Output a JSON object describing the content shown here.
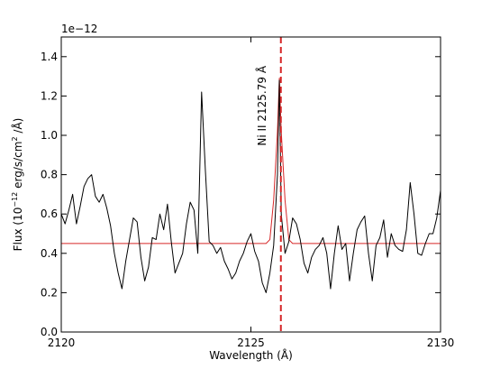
{
  "chart_data": {
    "type": "line",
    "title": "",
    "xlabel": "Wavelength (Å)",
    "ylabel_main": "Flux (10",
    "ylabel_exp": "−12",
    "ylabel_mid": "erg/s/cm",
    "ylabel_sq": "2",
    "ylabel_end": "/Å)",
    "offset_text": "1e−12",
    "xlim": [
      2120,
      2130
    ],
    "ylim": [
      0.0,
      1.5
    ],
    "x_ticks": [
      2120,
      2125,
      2130
    ],
    "x_tick_labels": [
      "2120",
      "2125",
      "2130"
    ],
    "y_ticks": [
      0.0,
      0.2,
      0.4,
      0.6,
      0.8,
      1.0,
      1.2,
      1.4
    ],
    "y_tick_labels": [
      "0.0",
      "0.2",
      "0.4",
      "0.6",
      "0.8",
      "1.0",
      "1.2",
      "1.4"
    ],
    "grid": false,
    "legend": "none",
    "series": [
      {
        "role": "observed",
        "color": "#000000",
        "x": [
          2120.0,
          2120.1,
          2120.2,
          2120.3,
          2120.4,
          2120.5,
          2120.6,
          2120.7,
          2120.8,
          2120.9,
          2121.0,
          2121.1,
          2121.2,
          2121.3,
          2121.4,
          2121.5,
          2121.6,
          2121.7,
          2121.8,
          2121.9,
          2122.0,
          2122.1,
          2122.2,
          2122.3,
          2122.4,
          2122.5,
          2122.6,
          2122.7,
          2122.8,
          2122.9,
          2123.0,
          2123.1,
          2123.2,
          2123.3,
          2123.4,
          2123.5,
          2123.6,
          2123.7,
          2123.8,
          2123.9,
          2124.0,
          2124.1,
          2124.2,
          2124.3,
          2124.4,
          2124.5,
          2124.6,
          2124.7,
          2124.8,
          2124.9,
          2125.0,
          2125.1,
          2125.2,
          2125.3,
          2125.4,
          2125.5,
          2125.6,
          2125.7,
          2125.75,
          2125.8,
          2125.9,
          2126.0,
          2126.1,
          2126.2,
          2126.3,
          2126.4,
          2126.5,
          2126.6,
          2126.7,
          2126.8,
          2126.9,
          2127.0,
          2127.1,
          2127.2,
          2127.3,
          2127.4,
          2127.5,
          2127.6,
          2127.7,
          2127.8,
          2127.9,
          2128.0,
          2128.1,
          2128.2,
          2128.3,
          2128.4,
          2128.5,
          2128.6,
          2128.7,
          2128.8,
          2128.9,
          2129.0,
          2129.1,
          2129.2,
          2129.3,
          2129.4,
          2129.5,
          2129.6,
          2129.7,
          2129.8,
          2129.9,
          2130.0
        ],
        "y": [
          0.6,
          0.55,
          0.62,
          0.7,
          0.55,
          0.64,
          0.74,
          0.78,
          0.8,
          0.69,
          0.66,
          0.7,
          0.63,
          0.54,
          0.4,
          0.3,
          0.22,
          0.36,
          0.47,
          0.58,
          0.56,
          0.38,
          0.26,
          0.33,
          0.48,
          0.47,
          0.6,
          0.52,
          0.65,
          0.46,
          0.3,
          0.35,
          0.4,
          0.55,
          0.66,
          0.62,
          0.4,
          1.22,
          0.82,
          0.46,
          0.44,
          0.4,
          0.43,
          0.36,
          0.32,
          0.27,
          0.3,
          0.36,
          0.4,
          0.46,
          0.5,
          0.41,
          0.36,
          0.25,
          0.2,
          0.3,
          0.44,
          0.8,
          1.28,
          0.6,
          0.4,
          0.46,
          0.58,
          0.55,
          0.47,
          0.35,
          0.3,
          0.38,
          0.42,
          0.44,
          0.48,
          0.4,
          0.22,
          0.4,
          0.54,
          0.42,
          0.45,
          0.26,
          0.4,
          0.52,
          0.56,
          0.59,
          0.4,
          0.26,
          0.44,
          0.48,
          0.57,
          0.38,
          0.5,
          0.44,
          0.42,
          0.41,
          0.52,
          0.76,
          0.6,
          0.4,
          0.39,
          0.45,
          0.5,
          0.5,
          0.58,
          0.72
        ]
      },
      {
        "role": "model",
        "color": "#d62728",
        "x": [
          2120.0,
          2125.4,
          2125.5,
          2125.6,
          2125.7,
          2125.75,
          2125.8,
          2125.9,
          2126.0,
          2126.1,
          2130.0
        ],
        "y": [
          0.45,
          0.45,
          0.47,
          0.67,
          1.02,
          1.29,
          1.02,
          0.67,
          0.47,
          0.45,
          0.45
        ]
      }
    ],
    "vline": {
      "x": 2125.79,
      "style": "dashed",
      "color": "#d62728",
      "label": "Ni II  2125.79 Å"
    }
  }
}
